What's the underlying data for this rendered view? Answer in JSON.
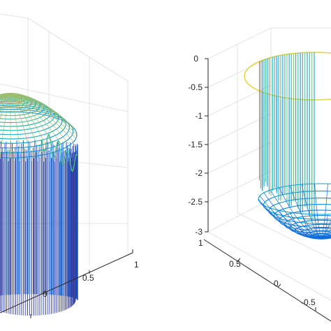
{
  "chart_data": [
    {
      "type": "surface3d",
      "title": "",
      "colormap": "parula",
      "grid": true,
      "surface": "dome",
      "x_ticks": [
        "0",
        "0.5",
        "1"
      ],
      "x_range": [
        -1,
        1
      ],
      "y_range": [
        -1,
        1
      ],
      "z_range": [
        -3,
        1
      ],
      "dome_height": 1,
      "wall_bottom": -3
    },
    {
      "type": "surface3d",
      "title": "",
      "colormap": "parula",
      "grid": true,
      "surface": "bowl",
      "z_ticks": [
        "0",
        "-0.5",
        "-1",
        "-1.5",
        "-2",
        "-2.5",
        "-3"
      ],
      "z_tick_values": [
        0,
        -0.5,
        -1,
        -1.5,
        -2,
        -2.5,
        -3
      ],
      "y_ticks": [
        "1",
        "0.5",
        "0"
      ],
      "x_ticks": [
        "-0.5"
      ],
      "x_range": [
        -1,
        1
      ],
      "y_range": [
        -1,
        1
      ],
      "z_range": [
        -3,
        0
      ]
    }
  ]
}
